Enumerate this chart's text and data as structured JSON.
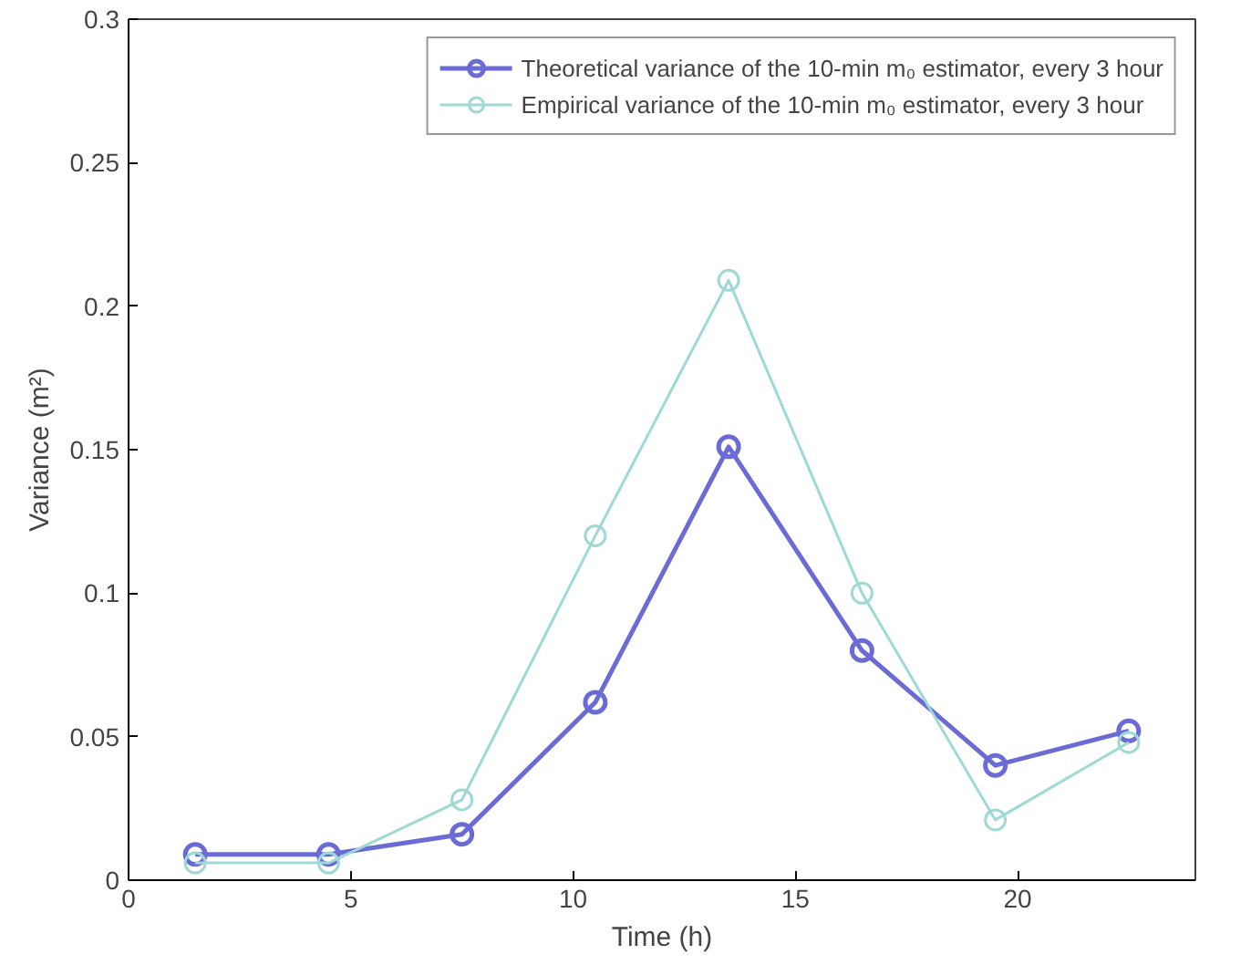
{
  "chart_data": {
    "type": "line",
    "xlabel": "Time (h)",
    "ylabel": "Variance (m²)",
    "x": [
      1.5,
      4.5,
      7.5,
      10.5,
      13.5,
      16.5,
      19.5,
      22.5
    ],
    "series": [
      {
        "name": "Theoretical variance of the 10-min m₀ estimator, every 3 hour",
        "color": "#6b6bd6",
        "values": [
          0.009,
          0.009,
          0.016,
          0.062,
          0.151,
          0.08,
          0.04,
          0.052
        ]
      },
      {
        "name": "Empirical variance of the 10-min m₀ estimator, every 3 hour",
        "color": "#9ed9d6",
        "values": [
          0.006,
          0.006,
          0.028,
          0.12,
          0.209,
          0.1,
          0.021,
          0.048
        ]
      }
    ],
    "xlim": [
      0,
      24
    ],
    "xticks": [
      0,
      5,
      10,
      15,
      20
    ],
    "ylim": [
      0,
      0.3
    ],
    "yticks": [
      0,
      0.05,
      0.1,
      0.15,
      0.2,
      0.25,
      0.3
    ],
    "grid": false,
    "legend": "top right",
    "marker": "circle",
    "line_style": "solid"
  }
}
